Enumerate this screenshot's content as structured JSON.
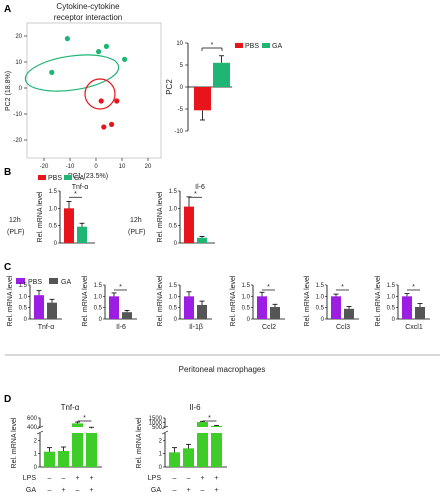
{
  "panels": {
    "a": "A",
    "b": "B",
    "c": "C",
    "d": "D"
  },
  "pca": {
    "title_line1": "Cytokine-cytokine",
    "title_line2": "receptor interaction",
    "xlabel": "PC1 (23.5%)",
    "ylabel": "PC2 (18.8%)",
    "xticks": [
      "-20",
      "-10",
      "0",
      "10",
      "20"
    ],
    "yticks": [
      "20",
      "10",
      "0",
      "-10",
      "-20"
    ]
  },
  "colors": {
    "pbs_red": "#e8141c",
    "ga_green": "#1fb574",
    "pbs_purple": "#9d1ee3",
    "ga_gray": "#555555",
    "lps_green": "#3dcc28"
  },
  "legend": {
    "pbs": "PBS",
    "ga": "GA"
  },
  "sig": "*",
  "pc2_bar": {
    "ylabel": "PC2",
    "yticks": [
      "10",
      "5",
      "0",
      "-5",
      "-10"
    ]
  },
  "section_b": {
    "condition_top": "12h",
    "condition_bottom": "(PLF)",
    "ylabel": "Rel. mRNA level",
    "yticks": [
      "1.5",
      "1.0",
      "0.5",
      "0"
    ]
  },
  "section_c": {
    "ylabel": "Rel. mRNA level",
    "yticks": [
      "1.5",
      "1.0",
      "0.5",
      "0"
    ],
    "footer": "Peritoneal macrophages"
  },
  "section_d": {
    "ylabel": "Rel. mRNA level",
    "tnf_yticks": [
      "600",
      "400",
      "2",
      "1",
      "0"
    ],
    "il6_yticks": [
      "1500",
      "1000",
      "500",
      "2",
      "1",
      "0"
    ],
    "lps_label": "LPS",
    "ga_label": "GA",
    "lps_signs": [
      "–",
      "–",
      "+",
      "+"
    ],
    "ga_signs": [
      "–",
      "+",
      "–",
      "+"
    ]
  },
  "chart_data": [
    {
      "type": "scatter",
      "title": "Cytokine-cytokine receptor interaction",
      "xlabel": "PC1 (23.5%)",
      "ylabel": "PC2 (18.8%)",
      "xlim": [
        -25,
        25
      ],
      "ylim": [
        -25,
        25
      ],
      "series": [
        {
          "name": "PBS",
          "points": [
            [
              2,
              -5
            ],
            [
              3,
              -15
            ],
            [
              8,
              -5
            ],
            [
              6,
              -14
            ]
          ]
        },
        {
          "name": "GA",
          "points": [
            [
              -17,
              6
            ],
            [
              -11,
              19
            ],
            [
              1,
              14
            ],
            [
              4,
              16
            ],
            [
              11,
              11
            ]
          ]
        }
      ]
    },
    {
      "type": "bar",
      "categories": [
        "PBS",
        "GA"
      ],
      "values": [
        -5.3,
        5.5
      ],
      "errors": [
        2.2,
        1.6
      ],
      "ylabel": "PC2",
      "ylim": [
        -10,
        10
      ]
    },
    {
      "type": "bar",
      "title": "Tnf-α",
      "categories": [
        "PBS",
        "GA"
      ],
      "values": [
        1.0,
        0.47
      ],
      "errors": [
        0.2,
        0.1
      ],
      "ylabel": "Rel. mRNA level",
      "ylim": [
        0,
        1.5
      ]
    },
    {
      "type": "bar",
      "title": "Il-6",
      "categories": [
        "PBS",
        "GA"
      ],
      "values": [
        1.05,
        0.15
      ],
      "errors": [
        0.28,
        0.04
      ],
      "ylabel": "Rel. mRNA level",
      "ylim": [
        0,
        1.5
      ]
    },
    {
      "type": "bar",
      "title": "Peritoneal macrophages",
      "genes": [
        {
          "label": "Tnf-α",
          "values": [
            1.05,
            0.72
          ],
          "errors": [
            0.2,
            0.15
          ],
          "sig": false
        },
        {
          "label": "Il-6",
          "values": [
            1.0,
            0.3
          ],
          "errors": [
            0.15,
            0.08
          ],
          "sig": true
        },
        {
          "label": "Il-1β",
          "values": [
            1.0,
            0.62
          ],
          "errors": [
            0.2,
            0.17
          ],
          "sig": false
        },
        {
          "label": "Ccl2",
          "values": [
            1.0,
            0.53
          ],
          "errors": [
            0.18,
            0.12
          ],
          "sig": true
        },
        {
          "label": "Ccl3",
          "values": [
            1.0,
            0.45
          ],
          "errors": [
            0.1,
            0.1
          ],
          "sig": true
        },
        {
          "label": "Cxcl1",
          "values": [
            1.0,
            0.53
          ],
          "errors": [
            0.12,
            0.15
          ],
          "sig": true
        }
      ],
      "series": [
        "PBS",
        "GA"
      ],
      "ylabel": "Rel. mRNA level",
      "ylim": [
        0,
        1.5
      ]
    },
    {
      "type": "bar",
      "title": "Tnf-α",
      "categories": [
        "LPS– GA–",
        "LPS– GA+",
        "LPS+ GA–",
        "LPS+ GA+"
      ],
      "values": [
        1.15,
        1.2,
        480,
        370
      ],
      "errors": [
        0.3,
        0.3,
        30,
        25
      ],
      "ylabel": "Rel. mRNA level"
    },
    {
      "type": "bar",
      "title": "Il-6",
      "categories": [
        "LPS– GA–",
        "LPS– GA+",
        "LPS+ GA–",
        "LPS+ GA+"
      ],
      "values": [
        1.1,
        1.4,
        1050,
        620
      ],
      "errors": [
        0.35,
        0.3,
        80,
        60
      ],
      "ylabel": "Rel. mRNA level"
    }
  ]
}
